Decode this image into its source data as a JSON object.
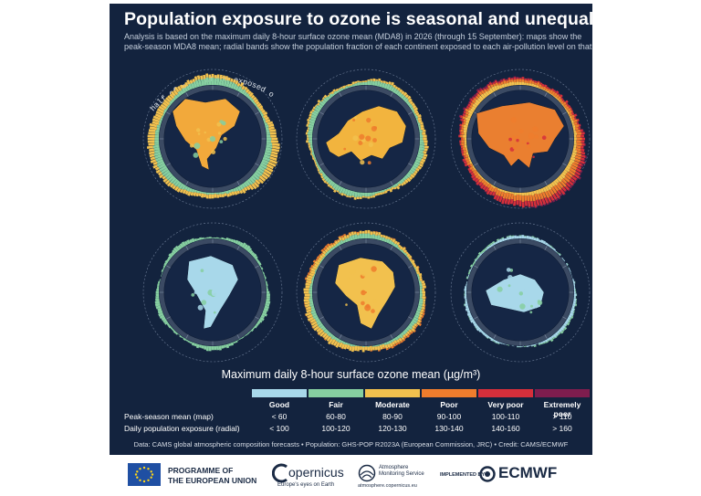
{
  "title": "Population exposure to ozone is seasonal and unequal",
  "subtitle_line1": "Analysis is based on the maximum daily 8-hour surface ozone mean (MDA8) in 2026 (through 15 September): maps show the",
  "subtitle_line2": "peak-season MDA8 mean; radial bands show the population fraction of each continent exposed to each air-pollution level on that day.",
  "annotation": "half of population exposed on that day",
  "chart_data": {
    "type": "radial",
    "panels": [
      {
        "region": "North America",
        "dominant_level": "Moderate"
      },
      {
        "region": "Europe",
        "dominant_level": "Moderate"
      },
      {
        "region": "Asia",
        "dominant_level": "Poor"
      },
      {
        "region": "South America",
        "dominant_level": "Good"
      },
      {
        "region": "Africa",
        "dominant_level": "Moderate"
      },
      {
        "region": "Oceania",
        "dominant_level": "Good"
      }
    ],
    "legend": {
      "title": "Maximum daily 8-hour surface ozone mean (µg/m³)",
      "categories": [
        "Good",
        "Fair",
        "Moderate",
        "Poor",
        "Very poor",
        "Extremely poor"
      ],
      "colors": [
        "#a8d8ea",
        "#86cfa0",
        "#f2c14e",
        "#ef7d2d",
        "#d62f3b",
        "#7e1d4e"
      ],
      "row_labels": [
        "Peak-season mean (map)",
        "Daily population exposure (radial)"
      ],
      "map_ranges": [
        "< 60",
        "60-80",
        "80-90",
        "90-100",
        "100-110",
        "> 110"
      ],
      "radial_ranges": [
        "< 100",
        "100-120",
        "120-130",
        "130-140",
        "140-160",
        "> 160"
      ]
    }
  },
  "credits": "Data: CAMS global atmospheric composition forecasts • Population: GHS-POP R2023A (European Commission, JRC) • Credit: CAMS/ECMWF",
  "footer": {
    "programme": "PROGRAMME OF",
    "eu": "THE EUROPEAN UNION",
    "copernicus": "opernicus",
    "copernicus_tag": "Europe's eyes on Earth",
    "service_line1": "Atmosphere",
    "service_line2": "Monitoring Service",
    "service_url": "atmosphere.copernicus.eu",
    "implemented": "IMPLEMENTED BY",
    "ecmwf": "ECMWF"
  }
}
